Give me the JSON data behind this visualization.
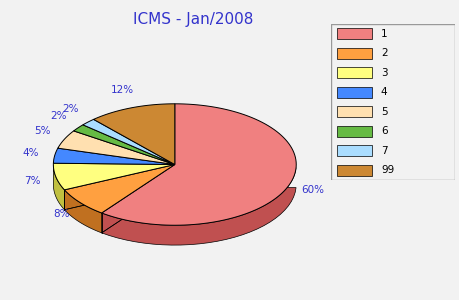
{
  "title": "ICMS - Jan/2008",
  "title_color": "#3333cc",
  "slices": [
    {
      "label": "1",
      "pct": 60.29,
      "color": "#f08080",
      "side_color": "#c05050"
    },
    {
      "label": "2",
      "pct": 7.86,
      "color": "#ffa040",
      "side_color": "#c07020"
    },
    {
      "label": "3",
      "pct": 7.19,
      "color": "#ffff80",
      "side_color": "#c0c040"
    },
    {
      "label": "4",
      "pct": 4.0,
      "color": "#4488ff",
      "side_color": "#2255cc"
    },
    {
      "label": "5",
      "pct": 5.0,
      "color": "#ffe0b0",
      "side_color": "#c0a870"
    },
    {
      "label": "6",
      "pct": 2.0,
      "color": "#66bb44",
      "side_color": "#448822"
    },
    {
      "label": "7",
      "pct": 2.0,
      "color": "#aaddff",
      "side_color": "#6699cc"
    },
    {
      "label": "99",
      "pct": 11.66,
      "color": "#cc8833",
      "side_color": "#996611"
    }
  ],
  "pct_labels": [
    "60%",
    "8%",
    "7%",
    "4%",
    "5%",
    "2%",
    "2%",
    "12%"
  ],
  "label_color": "#3333cc",
  "background_color": "#f2f2f2",
  "figsize": [
    4.6,
    3.0
  ],
  "dpi": 100,
  "legend_colors": [
    "#f08080",
    "#ffa040",
    "#ffff80",
    "#4488ff",
    "#ffe0b0",
    "#66bb44",
    "#aaddff",
    "#cc8833"
  ],
  "legend_labels": [
    "1",
    "2",
    "3",
    "4",
    "5",
    "6",
    "7",
    "99"
  ]
}
